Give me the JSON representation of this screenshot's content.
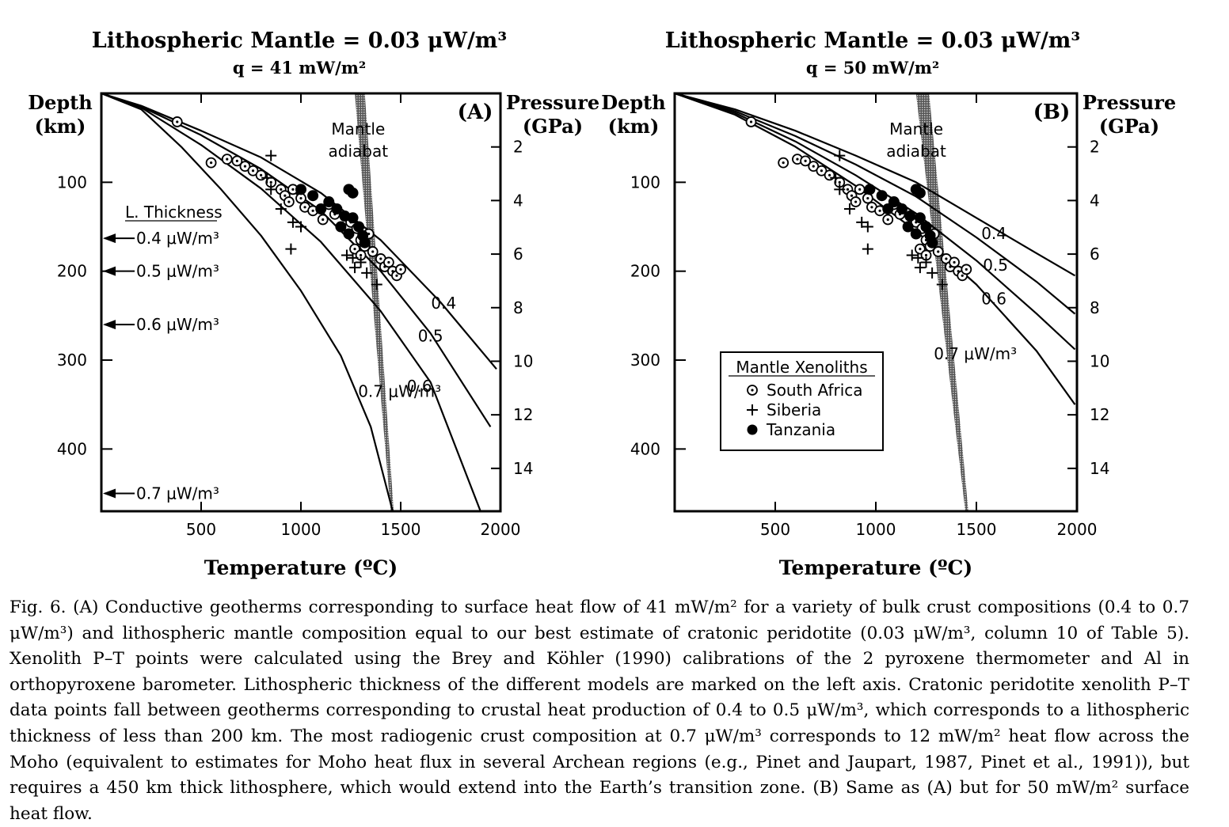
{
  "chart_data": [
    {
      "type": "line",
      "panel_label": "(A)",
      "title": "Lithospheric Mantle = 0.03 μW/m³",
      "subtitle": "q = 41 mW/m²",
      "xlabel": "Temperature (ºC)",
      "ylabel": "Depth (km)",
      "y2label": "Pressure (GPa)",
      "xlim": [
        0,
        2000
      ],
      "ylim": [
        470,
        0
      ],
      "y2lim": [
        0,
        15.6
      ],
      "x_ticks": [
        "500",
        "1000",
        "1500",
        "2000"
      ],
      "y_ticks": [
        "100",
        "200",
        "300",
        "400"
      ],
      "y2_ticks": [
        "2",
        "4",
        "6",
        "8",
        "10",
        "12",
        "14"
      ],
      "series": [
        {
          "name": "0.4",
          "label": "0.4",
          "points": [
            [
              0,
              0
            ],
            [
              200,
              14
            ],
            [
              500,
              42
            ],
            [
              800,
              72
            ],
            [
              1100,
              112
            ],
            [
              1400,
              165
            ],
            [
              1700,
              235
            ],
            [
              1980,
              310
            ]
          ]
        },
        {
          "name": "0.5",
          "label": "0.5",
          "points": [
            [
              0,
              0
            ],
            [
              200,
              15
            ],
            [
              500,
              47
            ],
            [
              800,
              85
            ],
            [
              1100,
              132
            ],
            [
              1400,
              200
            ],
            [
              1650,
              270
            ],
            [
              1950,
              375
            ]
          ]
        },
        {
          "name": "0.6",
          "label": "0.6",
          "points": [
            [
              0,
              0
            ],
            [
              200,
              16
            ],
            [
              500,
              58
            ],
            [
              800,
              107
            ],
            [
              1100,
              167
            ],
            [
              1400,
              245
            ],
            [
              1650,
              325
            ],
            [
              1900,
              470
            ]
          ]
        },
        {
          "name": "0.7 μW/m³",
          "label": "0.7 μW/m³",
          "points": [
            [
              0,
              0
            ],
            [
              200,
              18
            ],
            [
              400,
              60
            ],
            [
              600,
              108
            ],
            [
              800,
              160
            ],
            [
              1000,
              222
            ],
            [
              1200,
              295
            ],
            [
              1350,
              375
            ],
            [
              1460,
              470
            ]
          ]
        }
      ],
      "mantle_adiabat": {
        "label": [
          "Mantle",
          "adiabat"
        ],
        "top": [
          [
            1270,
            0
          ],
          [
            1320,
            0
          ]
        ],
        "bottom": [
          [
            1450,
            470
          ],
          [
            1465,
            470
          ]
        ]
      },
      "thickness_markers": {
        "heading": "L. Thickness",
        "items": [
          {
            "label": "0.4 μW/m³",
            "depth": 163
          },
          {
            "label": "0.5 μW/m³",
            "depth": 200
          },
          {
            "label": "0.6 μW/m³",
            "depth": 260
          },
          {
            "label": "0.7 μW/m³",
            "depth": 450
          }
        ]
      },
      "xenoliths": {
        "South Africa": [
          [
            380,
            32
          ],
          [
            550,
            78
          ],
          [
            630,
            74
          ],
          [
            680,
            76
          ],
          [
            720,
            82
          ],
          [
            760,
            87
          ],
          [
            800,
            92
          ],
          [
            850,
            100
          ],
          [
            900,
            108
          ],
          [
            920,
            115
          ],
          [
            940,
            122
          ],
          [
            960,
            108
          ],
          [
            1000,
            118
          ],
          [
            1020,
            128
          ],
          [
            1060,
            132
          ],
          [
            1110,
            142
          ],
          [
            1140,
            125
          ],
          [
            1170,
            136
          ],
          [
            1250,
            145
          ],
          [
            1280,
            152
          ],
          [
            1300,
            165
          ],
          [
            1320,
            172
          ],
          [
            1340,
            158
          ],
          [
            1360,
            178
          ],
          [
            1400,
            186
          ],
          [
            1420,
            195
          ],
          [
            1440,
            190
          ],
          [
            1460,
            200
          ],
          [
            1480,
            205
          ],
          [
            1500,
            198
          ],
          [
            1270,
            175
          ],
          [
            1300,
            182
          ]
        ],
        "Siberia": [
          [
            850,
            70
          ],
          [
            830,
            95
          ],
          [
            850,
            108
          ],
          [
            900,
            130
          ],
          [
            960,
            145
          ],
          [
            1000,
            150
          ],
          [
            950,
            175
          ],
          [
            1230,
            182
          ],
          [
            1260,
            185
          ],
          [
            1270,
            196
          ],
          [
            1300,
            190
          ],
          [
            1330,
            202
          ],
          [
            1380,
            215
          ]
        ],
        "Tanzania": [
          [
            1000,
            108
          ],
          [
            1060,
            115
          ],
          [
            1100,
            130
          ],
          [
            1140,
            122
          ],
          [
            1180,
            130
          ],
          [
            1220,
            138
          ],
          [
            1240,
            108
          ],
          [
            1260,
            112
          ],
          [
            1260,
            140
          ],
          [
            1290,
            150
          ],
          [
            1310,
            160
          ],
          [
            1320,
            168
          ],
          [
            1240,
            158
          ],
          [
            1200,
            150
          ]
        ]
      }
    },
    {
      "type": "line",
      "panel_label": "(B)",
      "title": "Lithospheric Mantle = 0.03 μW/m³",
      "subtitle": "q = 50 mW/m²",
      "xlabel": "Temperature (ºC)",
      "ylabel": "Depth (km)",
      "y2label": "Pressure (GPa)",
      "xlim": [
        0,
        2000
      ],
      "ylim": [
        470,
        0
      ],
      "y2lim": [
        0,
        15.6
      ],
      "x_ticks": [
        "500",
        "1000",
        "1500",
        "2000"
      ],
      "y_ticks": [
        "100",
        "200",
        "300",
        "400"
      ],
      "y2_ticks": [
        "2",
        "4",
        "6",
        "8",
        "10",
        "12",
        "14"
      ],
      "series": [
        {
          "name": "0.4",
          "label": "0.4",
          "points": [
            [
              0,
              0
            ],
            [
              300,
              18
            ],
            [
              600,
              42
            ],
            [
              900,
              70
            ],
            [
              1200,
              100
            ],
            [
              1500,
              140
            ],
            [
              1800,
              180
            ],
            [
              1990,
              205
            ]
          ]
        },
        {
          "name": "0.5",
          "label": "0.5",
          "points": [
            [
              0,
              0
            ],
            [
              300,
              20
            ],
            [
              600,
              48
            ],
            [
              900,
              80
            ],
            [
              1200,
              116
            ],
            [
              1500,
              162
            ],
            [
              1800,
              212
            ],
            [
              1990,
              248
            ]
          ]
        },
        {
          "name": "0.6",
          "label": "0.6",
          "points": [
            [
              0,
              0
            ],
            [
              300,
              22
            ],
            [
              600,
              54
            ],
            [
              900,
              92
            ],
            [
              1200,
              135
            ],
            [
              1500,
              188
            ],
            [
              1800,
              248
            ],
            [
              1990,
              288
            ]
          ]
        },
        {
          "name": "0.7 μW/m³",
          "label": "0.7 μW/m³",
          "points": [
            [
              0,
              0
            ],
            [
              300,
              24
            ],
            [
              600,
              60
            ],
            [
              900,
              104
            ],
            [
              1200,
              155
            ],
            [
              1500,
              215
            ],
            [
              1800,
              290
            ],
            [
              1990,
              350
            ]
          ]
        }
      ],
      "mantle_adiabat": {
        "label": [
          "Mantle",
          "adiabat"
        ],
        "top": [
          [
            1200,
            0
          ],
          [
            1265,
            0
          ]
        ],
        "bottom": [
          [
            1445,
            470
          ],
          [
            1460,
            470
          ]
        ]
      },
      "legend": {
        "heading": "Mantle Xenoliths",
        "items": [
          {
            "name": "South Africa",
            "marker": "dotted-circle"
          },
          {
            "name": "Siberia",
            "marker": "plus"
          },
          {
            "name": "Tanzania",
            "marker": "filled-circle"
          }
        ]
      },
      "xenoliths": {
        "South Africa": [
          [
            380,
            32
          ],
          [
            540,
            78
          ],
          [
            610,
            74
          ],
          [
            650,
            76
          ],
          [
            690,
            82
          ],
          [
            730,
            87
          ],
          [
            770,
            92
          ],
          [
            820,
            100
          ],
          [
            860,
            108
          ],
          [
            880,
            115
          ],
          [
            900,
            122
          ],
          [
            920,
            108
          ],
          [
            960,
            118
          ],
          [
            980,
            128
          ],
          [
            1020,
            132
          ],
          [
            1060,
            142
          ],
          [
            1090,
            125
          ],
          [
            1120,
            136
          ],
          [
            1200,
            145
          ],
          [
            1230,
            152
          ],
          [
            1250,
            165
          ],
          [
            1270,
            172
          ],
          [
            1290,
            158
          ],
          [
            1310,
            178
          ],
          [
            1350,
            186
          ],
          [
            1370,
            195
          ],
          [
            1390,
            190
          ],
          [
            1410,
            200
          ],
          [
            1430,
            205
          ],
          [
            1450,
            198
          ],
          [
            1220,
            175
          ],
          [
            1250,
            182
          ]
        ],
        "Siberia": [
          [
            820,
            70
          ],
          [
            800,
            95
          ],
          [
            820,
            108
          ],
          [
            870,
            130
          ],
          [
            930,
            145
          ],
          [
            960,
            150
          ],
          [
            960,
            175
          ],
          [
            1180,
            182
          ],
          [
            1210,
            185
          ],
          [
            1220,
            196
          ],
          [
            1250,
            190
          ],
          [
            1280,
            202
          ],
          [
            1330,
            215
          ]
        ],
        "Tanzania": [
          [
            970,
            108
          ],
          [
            1030,
            115
          ],
          [
            1060,
            130
          ],
          [
            1090,
            122
          ],
          [
            1130,
            130
          ],
          [
            1170,
            138
          ],
          [
            1200,
            108
          ],
          [
            1220,
            112
          ],
          [
            1220,
            140
          ],
          [
            1250,
            150
          ],
          [
            1270,
            160
          ],
          [
            1280,
            168
          ],
          [
            1200,
            158
          ],
          [
            1160,
            150
          ]
        ]
      }
    }
  ],
  "caption": {
    "fig_label": "Fig. 6.",
    "text": "(A) Conductive geotherms corresponding to surface heat flow of 41 mW/m² for a variety of bulk crust compositions (0.4 to 0.7 μW/m³) and lithospheric mantle composition equal to our best estimate of cratonic peridotite (0.03 μW/m³, column 10 of Table 5). Xenolith P–T points were calculated using the Brey and Köhler (1990) calibrations of the 2 pyroxene thermometer and Al in orthopyroxene barometer. Lithospheric thickness of the different models are marked on the left axis. Cratonic peridotite xenolith P–T data points fall between geotherms corresponding to crustal heat production of 0.4 to 0.5 μW/m³, which corresponds to a lithospheric thickness of less than 200 km. The most radiogenic crust composition at 0.7 μW/m³ corresponds to 12 mW/m² heat flow across the Moho (equivalent to estimates for Moho heat flux in several Archean regions (e.g., Pinet and Jaupart, 1987, Pinet et al., 1991)), but requires a 450 km thick lithosphere, which would extend into the Earth’s transition zone. (B) Same as (A) but for 50 mW/m² surface heat flow."
  }
}
